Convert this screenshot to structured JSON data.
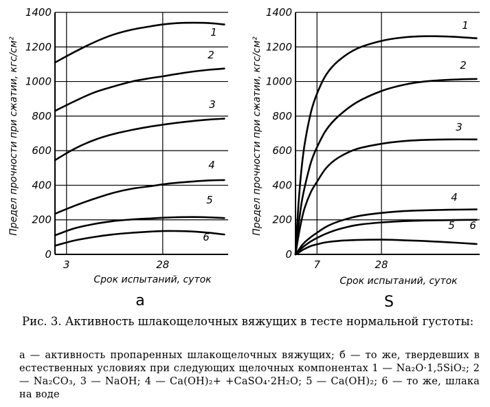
{
  "chart_data": [
    {
      "type": "line",
      "panel_label": "а",
      "xlabel": "Срок испытаний, суток",
      "ylabel": "Предел прочности при сжатии, кгс/см²",
      "xlim": [
        0,
        45
      ],
      "ylim": [
        0,
        1400
      ],
      "xticks": [
        {
          "value": 3,
          "label": "3"
        },
        {
          "value": 28,
          "label": "28"
        }
      ],
      "yticks": [
        0,
        200,
        400,
        600,
        800,
        1000,
        1200,
        1400
      ],
      "grid": true,
      "series": [
        {
          "name": "1",
          "x": [
            0,
            5,
            10,
            15,
            20,
            25,
            28,
            32,
            36,
            40,
            44
          ],
          "y": [
            1110,
            1170,
            1225,
            1270,
            1300,
            1320,
            1330,
            1338,
            1340,
            1338,
            1330
          ]
        },
        {
          "name": "2",
          "x": [
            0,
            5,
            10,
            15,
            20,
            25,
            28,
            32,
            36,
            40,
            44
          ],
          "y": [
            830,
            885,
            935,
            970,
            1000,
            1020,
            1030,
            1045,
            1058,
            1068,
            1075
          ]
        },
        {
          "name": "3",
          "x": [
            0,
            5,
            10,
            15,
            20,
            25,
            28,
            32,
            36,
            40,
            44
          ],
          "y": [
            545,
            610,
            660,
            695,
            720,
            740,
            750,
            762,
            772,
            780,
            785
          ]
        },
        {
          "name": "4",
          "x": [
            0,
            5,
            10,
            15,
            20,
            25,
            28,
            32,
            36,
            40,
            44
          ],
          "y": [
            235,
            280,
            320,
            355,
            380,
            395,
            405,
            415,
            422,
            428,
            430
          ]
        },
        {
          "name": "5",
          "x": [
            0,
            5,
            10,
            15,
            20,
            25,
            28,
            32,
            36,
            40,
            44
          ],
          "y": [
            110,
            150,
            175,
            192,
            202,
            208,
            212,
            215,
            216,
            214,
            210
          ]
        },
        {
          "name": "6",
          "x": [
            0,
            5,
            10,
            15,
            20,
            25,
            28,
            32,
            36,
            40,
            44
          ],
          "y": [
            50,
            80,
            100,
            115,
            125,
            132,
            135,
            135,
            132,
            125,
            115
          ]
        }
      ]
    },
    {
      "type": "line",
      "panel_label": "S",
      "xlabel": "Срок испытаний, суток",
      "ylabel": "Предел прочности при сжатии, кгс/см²",
      "xlim": [
        0,
        60
      ],
      "ylim": [
        0,
        1400
      ],
      "xticks": [
        {
          "value": 7,
          "label": "7"
        },
        {
          "value": 28,
          "label": "28"
        }
      ],
      "yticks": [
        0,
        200,
        400,
        600,
        800,
        1000,
        1200,
        1400
      ],
      "grid": true,
      "series": [
        {
          "name": "1",
          "x": [
            0,
            1,
            2,
            3,
            5,
            7,
            10,
            14,
            20,
            28,
            35,
            42,
            50,
            59
          ],
          "y": [
            0,
            300,
            500,
            640,
            820,
            930,
            1040,
            1120,
            1190,
            1235,
            1255,
            1262,
            1260,
            1250
          ]
        },
        {
          "name": "2",
          "x": [
            0,
            1,
            2,
            3,
            5,
            7,
            10,
            14,
            20,
            28,
            35,
            42,
            50,
            59
          ],
          "y": [
            0,
            170,
            300,
            390,
            530,
            620,
            720,
            800,
            880,
            945,
            980,
            1000,
            1010,
            1015
          ]
        },
        {
          "name": "3",
          "x": [
            0,
            1,
            2,
            3,
            5,
            7,
            10,
            14,
            20,
            28,
            35,
            42,
            50,
            59
          ],
          "y": [
            0,
            110,
            200,
            270,
            360,
            420,
            500,
            560,
            610,
            640,
            655,
            662,
            665,
            665
          ]
        },
        {
          "name": "4",
          "x": [
            0,
            1,
            2,
            3,
            5,
            7,
            10,
            14,
            20,
            28,
            35,
            42,
            50,
            59
          ],
          "y": [
            0,
            25,
            50,
            70,
            100,
            125,
            160,
            190,
            220,
            240,
            250,
            255,
            258,
            260
          ]
        },
        {
          "name": "5",
          "x": [
            0,
            1,
            2,
            3,
            5,
            7,
            10,
            14,
            20,
            28,
            35,
            42,
            50,
            59
          ],
          "y": [
            0,
            18,
            35,
            50,
            75,
            95,
            120,
            145,
            170,
            185,
            192,
            196,
            198,
            200
          ]
        },
        {
          "name": "6",
          "x": [
            0,
            1,
            2,
            3,
            5,
            7,
            10,
            14,
            20,
            28,
            35,
            42,
            50,
            59
          ],
          "y": [
            0,
            10,
            22,
            32,
            48,
            58,
            70,
            78,
            83,
            85,
            82,
            77,
            70,
            60
          ]
        }
      ]
    }
  ],
  "caption": {
    "title": "Рис. 3. Активность шлакощелочных вяжущих в тесте нормальной густоты:",
    "legend": "а — активность пропаренных шлакощелочных вяжущих; б — то же, твердевших в естественных условиях при следующих щелочных компонентах 1 — Na₂O·1,5SiO₂; 2 — Na₂CO₃, 3 — NaOH; 4 — Ca(OH)₂+ +CaSO₄·2H₂O; 5 — Ca(OH)₂; 6 — то же, шлака на воде"
  }
}
